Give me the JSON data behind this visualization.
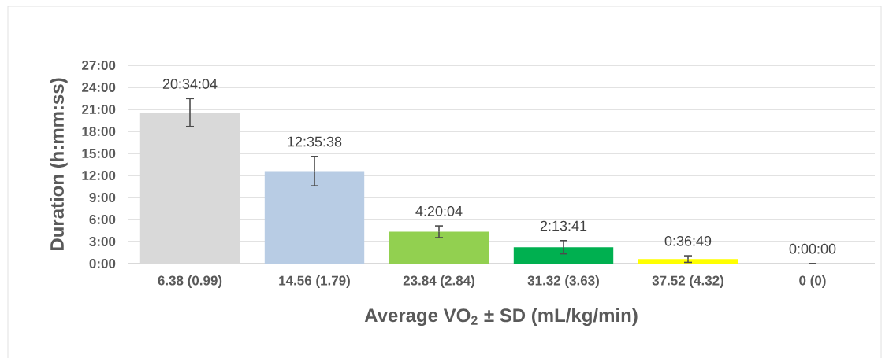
{
  "chart_data": {
    "type": "bar",
    "xlabel": "Average VO$_{2}$ ± SD (mL/kg/min)",
    "ylabel": "Duration (h:mm:ss)",
    "categories": [
      "6.38 (0.99)",
      "14.56 (1.79)",
      "23.84 (2.84)",
      "31.32 (3.63)",
      "37.52 (4.32)",
      "0 (0)"
    ],
    "values": [
      20.567778,
      12.593889,
      4.334444,
      2.228056,
      0.613611,
      0
    ],
    "errors": [
      1.9,
      2.0,
      0.8,
      0.9,
      0.45,
      0
    ],
    "value_labels": [
      "20:34:04",
      "12:35:38",
      "4:20:04",
      "2:13:41",
      "0:36:49",
      "0:00:00"
    ],
    "colors": [
      "#d9d9d9",
      "#b8cce4",
      "#92d050",
      "#00b050",
      "#ffff00",
      "#a6a6a6"
    ],
    "ylim": [
      0,
      27
    ],
    "yticks": [
      {
        "value": 0,
        "label": "0:00"
      },
      {
        "value": 3,
        "label": "3:00"
      },
      {
        "value": 6,
        "label": "6:00"
      },
      {
        "value": 9,
        "label": "9:00"
      },
      {
        "value": 12,
        "label": "12:00"
      },
      {
        "value": 15,
        "label": "15:00"
      },
      {
        "value": 18,
        "label": "18:00"
      },
      {
        "value": 21,
        "label": "21:00"
      },
      {
        "value": 24,
        "label": "24:00"
      },
      {
        "value": 27,
        "label": "27:00"
      }
    ],
    "grid": "y"
  }
}
